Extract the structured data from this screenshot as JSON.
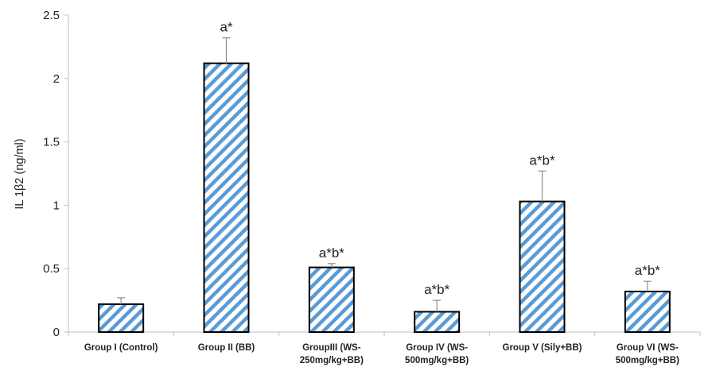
{
  "chart_data": {
    "type": "bar",
    "title": "",
    "xlabel": "",
    "ylabel": "IL 1β2  (ng/ml)",
    "ylim": [
      0,
      2.5
    ],
    "yticks": [
      "0",
      "0.5",
      "1",
      "1.5",
      "2",
      "2.5"
    ],
    "ytick_values": [
      0,
      0.5,
      1,
      1.5,
      2,
      2.5
    ],
    "grid": false,
    "legend": "none",
    "bar_fill_pattern": "diagonal-stripes",
    "colors": {
      "stripe": "#5b9bd5",
      "bar_outline": "#000000",
      "axis": "#bfbfbf",
      "error_bar": "#8c8c8c"
    },
    "categories": [
      [
        "Group I (Control)"
      ],
      [
        "Group II (BB)"
      ],
      [
        "GroupIII (WS-",
        "250mg/kg+BB)"
      ],
      [
        "Group IV (WS-",
        "500mg/kg+BB)"
      ],
      [
        "Group V (Sily+BB)"
      ],
      [
        "Group VI (WS-",
        "500mg/kg+BB)"
      ]
    ],
    "values": [
      0.22,
      2.12,
      0.51,
      0.16,
      1.03,
      0.32
    ],
    "error_upper": [
      0.27,
      2.32,
      0.54,
      0.25,
      1.27,
      0.4
    ],
    "annotations": [
      "",
      "a*",
      "a*b*",
      "a*b*",
      "a*b*",
      "a*b*"
    ]
  }
}
